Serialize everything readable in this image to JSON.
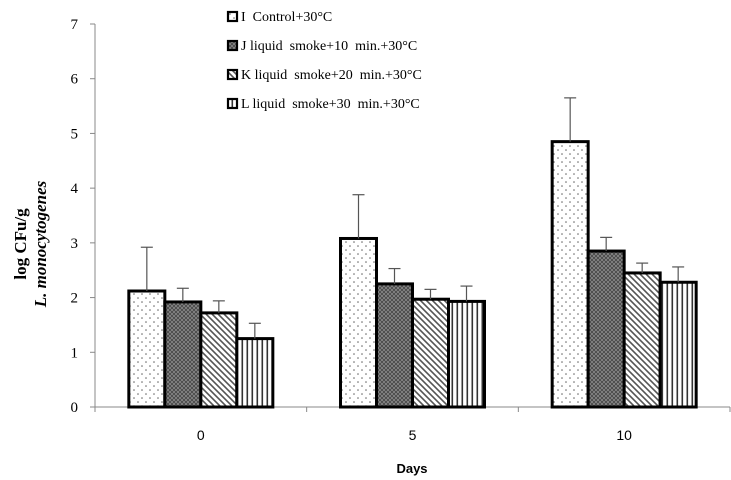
{
  "chart_data": {
    "type": "bar",
    "xlabel": "Days",
    "ylabel_line1": "log CFu/g",
    "ylabel_line2": "L. monocytogenes",
    "ylim": [
      0,
      7
    ],
    "yticks": [
      0,
      1,
      2,
      3,
      4,
      5,
      6,
      7
    ],
    "categories": [
      "0",
      "5",
      "10"
    ],
    "series": [
      {
        "name": "I  Control+30°C",
        "values": [
          2.12,
          3.08,
          4.85
        ],
        "errors": [
          0.8,
          0.8,
          0.8
        ],
        "pattern": "dots"
      },
      {
        "name": "J liquid  smoke+10  min.+30°C",
        "values": [
          1.92,
          2.25,
          2.85
        ],
        "errors": [
          0.25,
          0.28,
          0.25
        ],
        "pattern": "crosshatch"
      },
      {
        "name": "K liquid  smoke+20  min.+30°C",
        "values": [
          1.72,
          1.97,
          2.45
        ],
        "errors": [
          0.22,
          0.18,
          0.18
        ],
        "pattern": "diagonal"
      },
      {
        "name": "L liquid  smoke+30  min.+30°C",
        "values": [
          1.25,
          1.93,
          2.28
        ],
        "errors": [
          0.28,
          0.28,
          0.28
        ],
        "pattern": "vertical"
      }
    ],
    "legend_position": "top-center",
    "grid": false
  }
}
